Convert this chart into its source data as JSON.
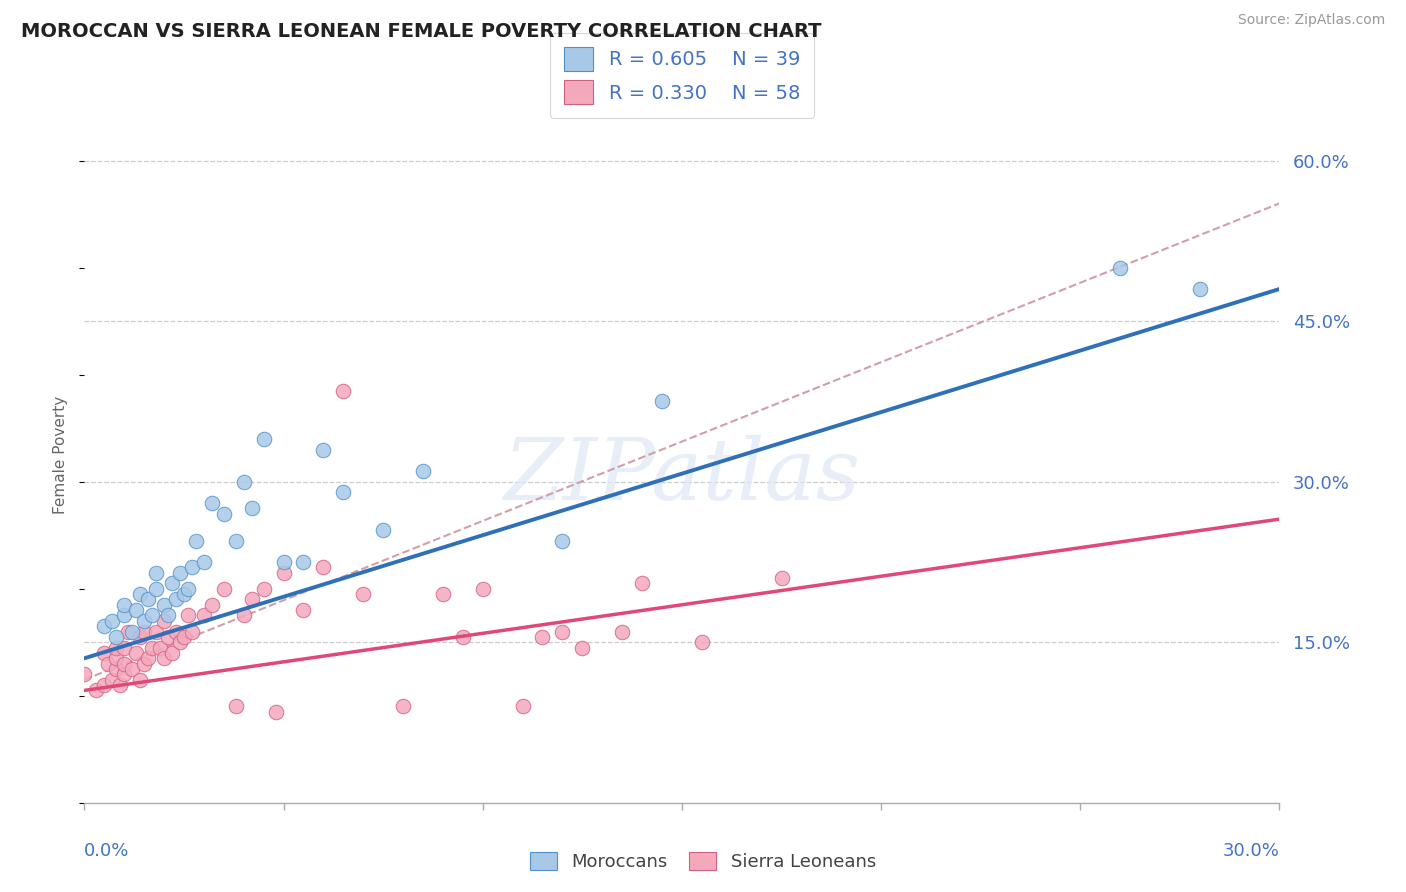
{
  "title": "MOROCCAN VS SIERRA LEONEAN FEMALE POVERTY CORRELATION CHART",
  "source": "Source: ZipAtlas.com",
  "xmin": 0.0,
  "xmax": 0.3,
  "ymin": 0.0,
  "ymax": 0.65,
  "yticks": [
    0.15,
    0.3,
    0.45,
    0.6
  ],
  "ytick_labels": [
    "15.0%",
    "30.0%",
    "45.0%",
    "60.0%"
  ],
  "legend_blue_R": "R = 0.605",
  "legend_blue_N": "N = 39",
  "legend_pink_R": "R = 0.330",
  "legend_pink_N": "N = 58",
  "ylabel": "Female Poverty",
  "color_blue_fill": "#a8c8e8",
  "color_blue_edge": "#5090c8",
  "color_pink_fill": "#f4a8bc",
  "color_pink_edge": "#d06080",
  "color_blue_line": "#3070b8",
  "color_pink_line": "#e04878",
  "color_dashed": "#d0a0a8",
  "watermark": "ZIPatlas",
  "blue_x": [
    0.005,
    0.007,
    0.008,
    0.01,
    0.01,
    0.012,
    0.013,
    0.014,
    0.015,
    0.016,
    0.017,
    0.018,
    0.018,
    0.02,
    0.021,
    0.022,
    0.023,
    0.024,
    0.025,
    0.026,
    0.027,
    0.028,
    0.03,
    0.032,
    0.035,
    0.038,
    0.04,
    0.042,
    0.045,
    0.05,
    0.055,
    0.06,
    0.065,
    0.075,
    0.085,
    0.12,
    0.145,
    0.26,
    0.28
  ],
  "blue_y": [
    0.165,
    0.17,
    0.155,
    0.175,
    0.185,
    0.16,
    0.18,
    0.195,
    0.17,
    0.19,
    0.175,
    0.2,
    0.215,
    0.185,
    0.175,
    0.205,
    0.19,
    0.215,
    0.195,
    0.2,
    0.22,
    0.245,
    0.225,
    0.28,
    0.27,
    0.245,
    0.3,
    0.275,
    0.34,
    0.225,
    0.225,
    0.33,
    0.29,
    0.255,
    0.31,
    0.245,
    0.375,
    0.5,
    0.48
  ],
  "pink_x": [
    0.0,
    0.003,
    0.005,
    0.005,
    0.006,
    0.007,
    0.008,
    0.008,
    0.008,
    0.009,
    0.01,
    0.01,
    0.01,
    0.011,
    0.012,
    0.013,
    0.014,
    0.014,
    0.015,
    0.015,
    0.016,
    0.017,
    0.018,
    0.019,
    0.02,
    0.02,
    0.021,
    0.022,
    0.023,
    0.024,
    0.025,
    0.026,
    0.027,
    0.03,
    0.032,
    0.035,
    0.038,
    0.04,
    0.042,
    0.045,
    0.048,
    0.05,
    0.055,
    0.06,
    0.065,
    0.07,
    0.08,
    0.09,
    0.095,
    0.1,
    0.11,
    0.115,
    0.12,
    0.125,
    0.135,
    0.14,
    0.155,
    0.175
  ],
  "pink_y": [
    0.12,
    0.105,
    0.11,
    0.14,
    0.13,
    0.115,
    0.125,
    0.135,
    0.145,
    0.11,
    0.12,
    0.13,
    0.145,
    0.16,
    0.125,
    0.14,
    0.115,
    0.155,
    0.13,
    0.16,
    0.135,
    0.145,
    0.16,
    0.145,
    0.135,
    0.17,
    0.155,
    0.14,
    0.16,
    0.15,
    0.155,
    0.175,
    0.16,
    0.175,
    0.185,
    0.2,
    0.09,
    0.175,
    0.19,
    0.2,
    0.085,
    0.215,
    0.18,
    0.22,
    0.385,
    0.195,
    0.09,
    0.195,
    0.155,
    0.2,
    0.09,
    0.155,
    0.16,
    0.145,
    0.16,
    0.205,
    0.15,
    0.21
  ],
  "blue_line_x0": 0.0,
  "blue_line_x1": 0.3,
  "blue_line_y0": 0.135,
  "blue_line_y1": 0.48,
  "pink_line_x0": 0.0,
  "pink_line_x1": 0.3,
  "pink_line_y0": 0.105,
  "pink_line_y1": 0.265,
  "dashed_line_x0": 0.0,
  "dashed_line_x1": 0.3,
  "dashed_line_y0": 0.115,
  "dashed_line_y1": 0.56
}
